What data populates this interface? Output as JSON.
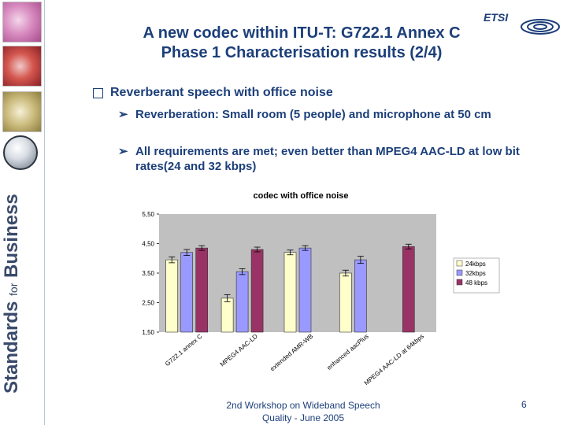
{
  "slide": {
    "title_line1": "A new codec within ITU-T: G722.1 Annex C",
    "title_line2": "Phase 1 Characterisation results (2/4)",
    "logo_text": "ETSI",
    "brand_main1": "Standards",
    "brand_small": "for",
    "brand_main2": "Business",
    "bullet1": "Reverberant speech with office noise",
    "sub1": "Reverberation: Small room (5 people) and microphone at 50 cm",
    "sub2": "All requirements are met; even better than MPEG4 AAC-LD at low bit rates(24 and 32 kbps)",
    "footer_line1": "2nd Workshop on Wideband Speech",
    "footer_line2": "Quality - June 2005",
    "page_number": "6",
    "colors": {
      "title": "#1c3f7a",
      "sidebar_border": "#b9c6d6"
    },
    "icons": [
      "checkbox-bullet-icon",
      "arrow-bullet-icon",
      "etsi-logo-icon",
      "globe-icon"
    ]
  },
  "chart_data": {
    "type": "bar",
    "title": "codec with office noise",
    "categories": [
      "G722.1 annex C",
      "MPEG4 AAC-LD",
      "extended AMR-WB",
      "enhanced aacPlus",
      "MPEG4 AAC-LD at 64kbps"
    ],
    "series": [
      {
        "name": "24kbps",
        "color": "#ffffcc",
        "values": [
          3.95,
          2.65,
          4.2,
          3.5,
          null
        ],
        "errors": [
          0.1,
          0.12,
          0.08,
          0.1,
          null
        ]
      },
      {
        "name": "32kbps",
        "color": "#9999ff",
        "values": [
          4.2,
          3.55,
          4.35,
          3.95,
          null
        ],
        "errors": [
          0.1,
          0.1,
          0.08,
          0.12,
          null
        ]
      },
      {
        "name": "48 kbps",
        "color": "#993366",
        "values": [
          4.35,
          4.3,
          null,
          null,
          4.4
        ],
        "errors": [
          0.08,
          0.08,
          null,
          null,
          0.08
        ]
      }
    ],
    "yticks": [
      "5,50",
      "4,50",
      "3,50",
      "2,50",
      "1,50"
    ],
    "ylim": [
      1.5,
      5.5
    ],
    "grid": false,
    "legend_position": "right"
  }
}
